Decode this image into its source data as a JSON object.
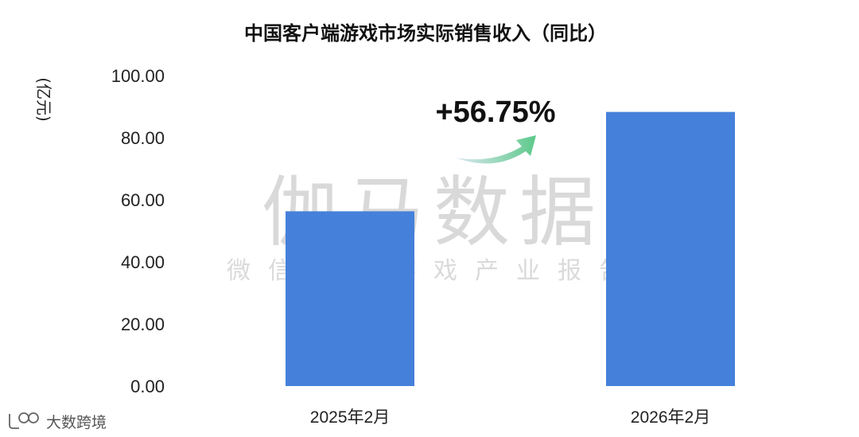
{
  "chart_data": {
    "type": "bar",
    "title": "中国客户端游戏市场实际销售收入（同比）",
    "ylabel": "(亿元)",
    "xlabel": "",
    "categories": [
      "2025年2月",
      "2026年2月"
    ],
    "values": [
      56.3,
      88.3
    ],
    "ylim": [
      0,
      100
    ],
    "yticks": [
      "0.00",
      "20.00",
      "40.00",
      "60.00",
      "80.00",
      "100.00"
    ],
    "grid": false,
    "bar_color": "#4580db",
    "annotation": "+56.75%"
  },
  "watermark": {
    "main": "伽马数据",
    "sub": "微信号：游戏产业报告"
  },
  "logo": {
    "text": "大数跨境"
  },
  "colors": {
    "arrow_start": "#dfe7f3",
    "arrow_end": "#5cc98a"
  }
}
